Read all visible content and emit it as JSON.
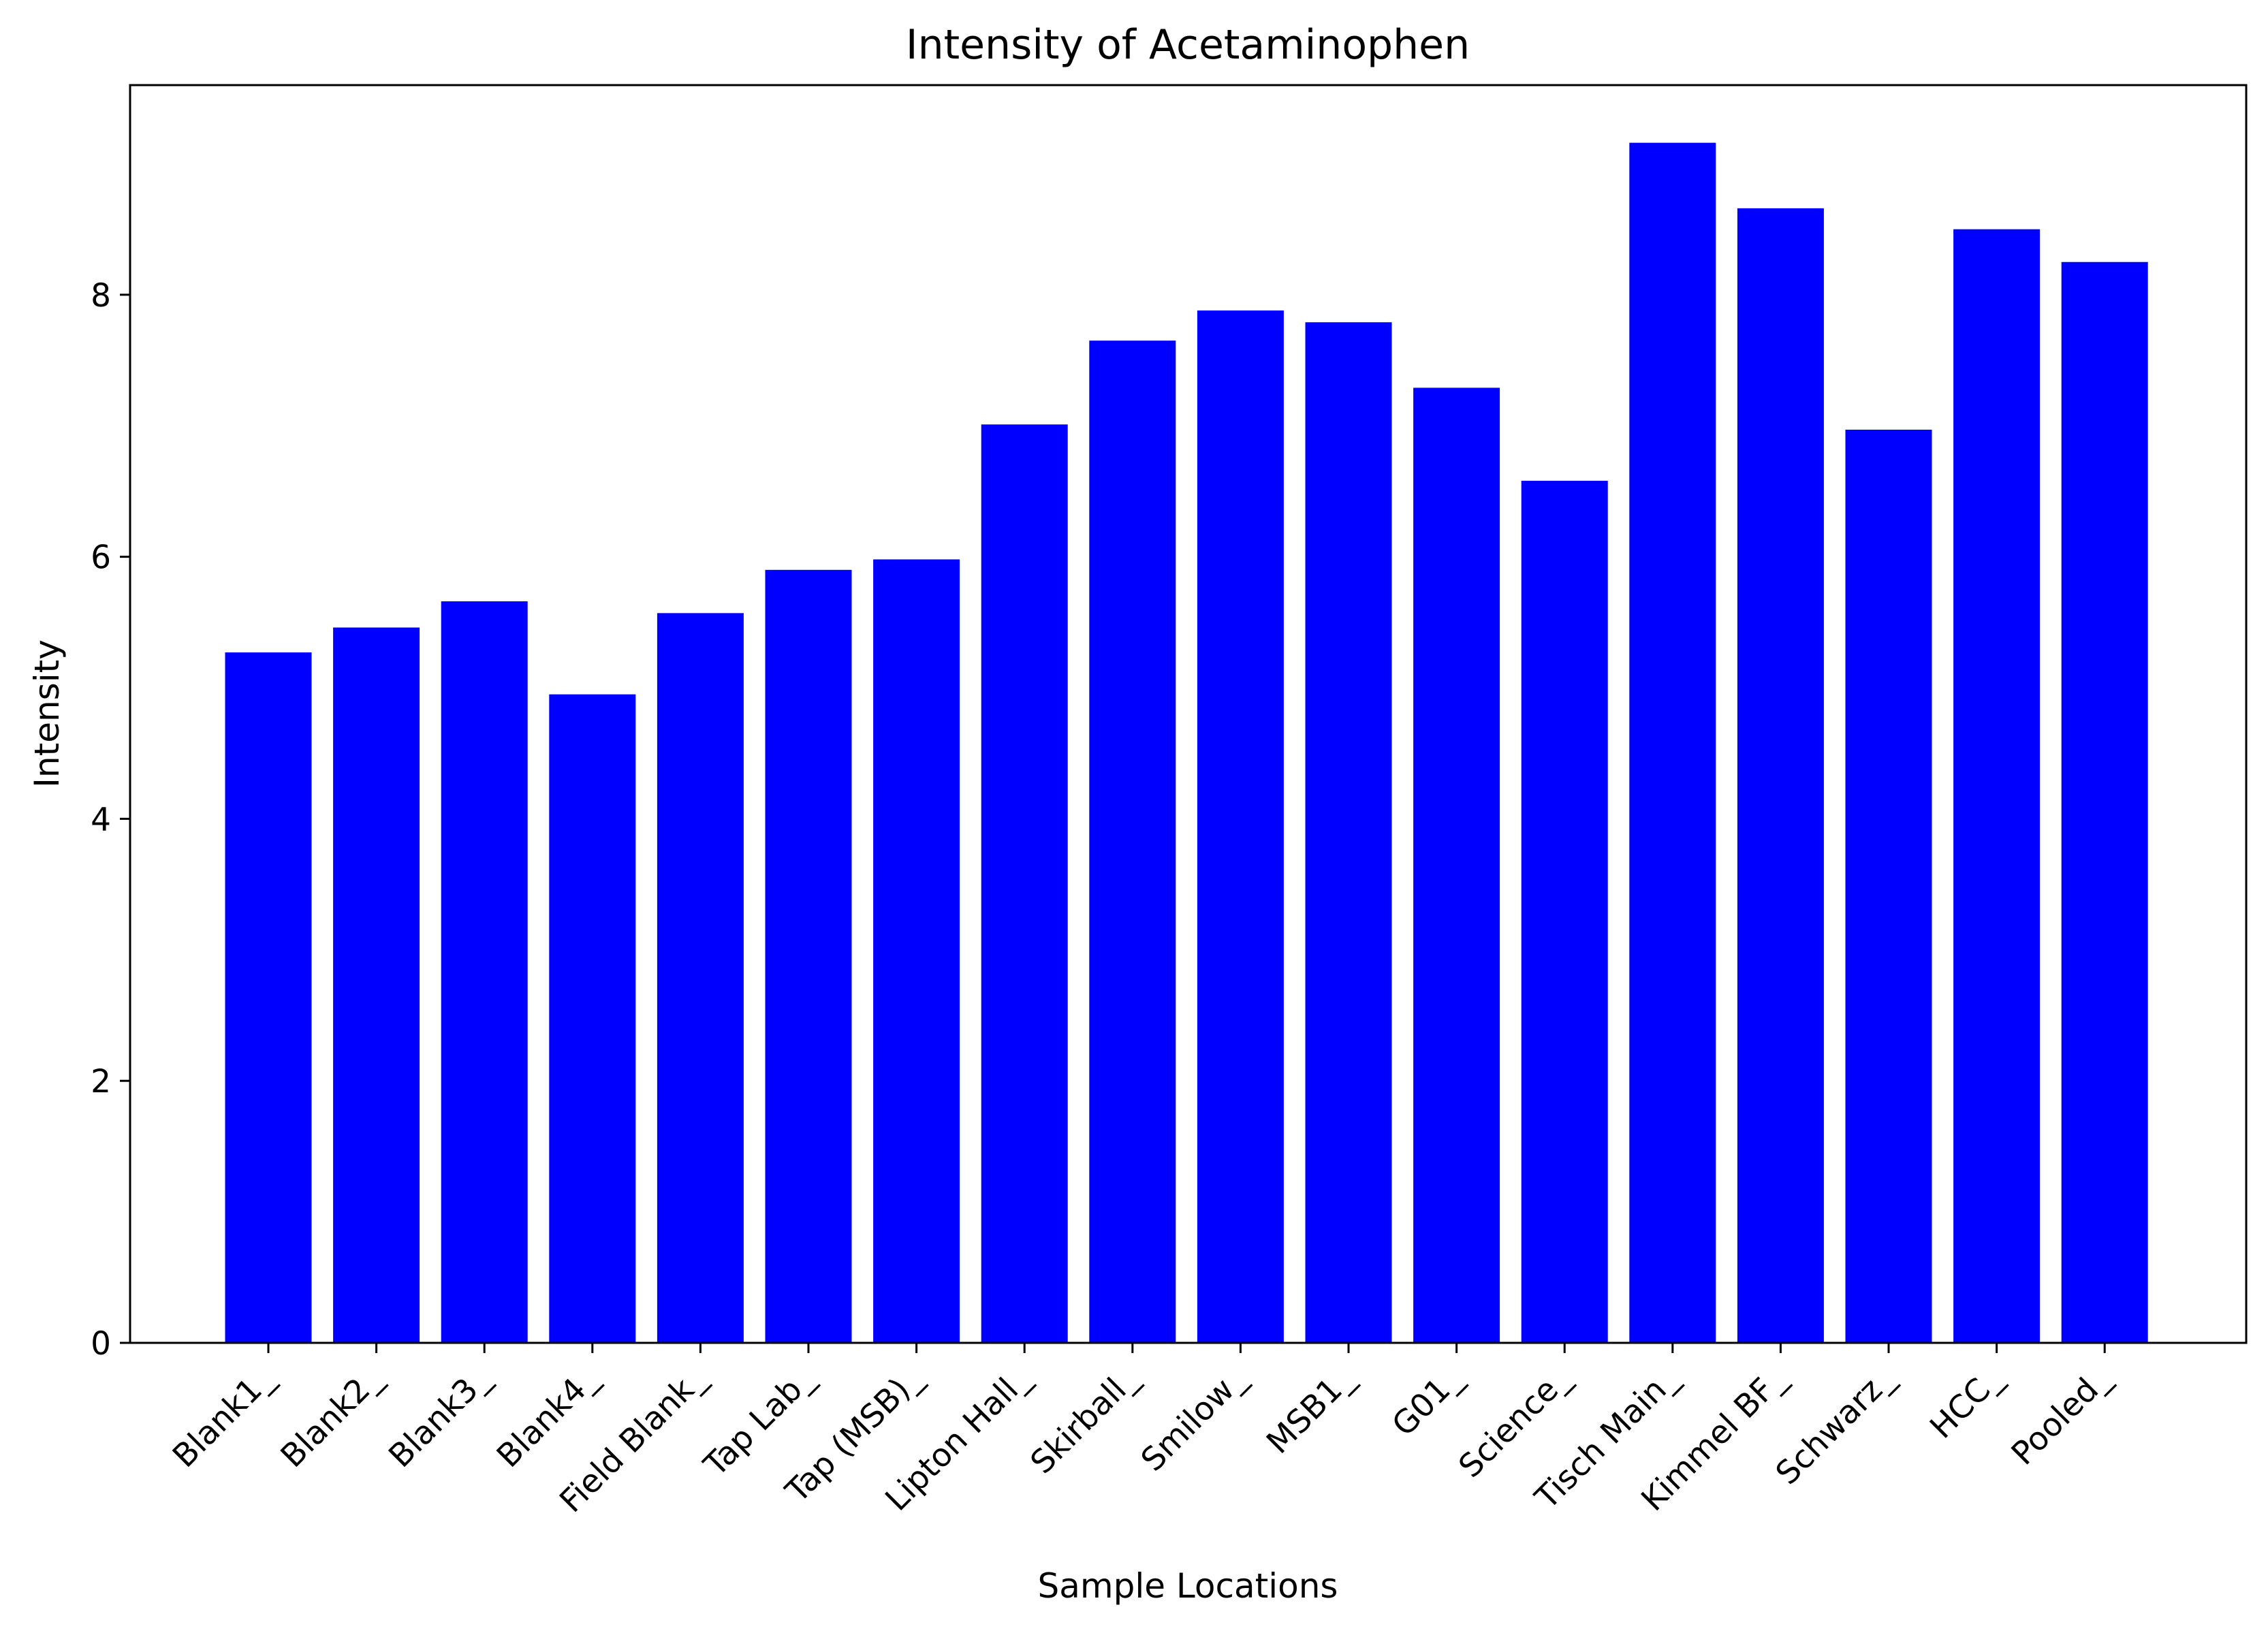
{
  "chart_data": {
    "type": "bar",
    "title": "Intensity of Acetaminophen",
    "xlabel": "Sample Locations",
    "ylabel": "Intensity",
    "categories": [
      "Blank1_",
      "Blank2_",
      "Blank3_",
      "Blank4_",
      "Field Blank_",
      "Tap Lab_",
      "Tap (MSB)_",
      "Lipton Hall_",
      "Skirball_",
      "Smilow_",
      "MSB1_",
      "G01_",
      "Science_",
      "Tisch Main_",
      "Kimmel BF_",
      "Schwarz_",
      "HCC_",
      "Pooled_"
    ],
    "values": [
      5.27,
      5.46,
      5.66,
      4.95,
      5.57,
      5.9,
      5.98,
      7.01,
      7.65,
      7.88,
      7.79,
      7.29,
      6.58,
      9.16,
      8.66,
      6.97,
      8.5,
      8.25
    ],
    "ylim": [
      0,
      9.6
    ],
    "yticks": [
      0,
      2,
      4,
      6,
      8
    ],
    "bar_color": "#0000ff",
    "grid": false,
    "legend": "none"
  }
}
